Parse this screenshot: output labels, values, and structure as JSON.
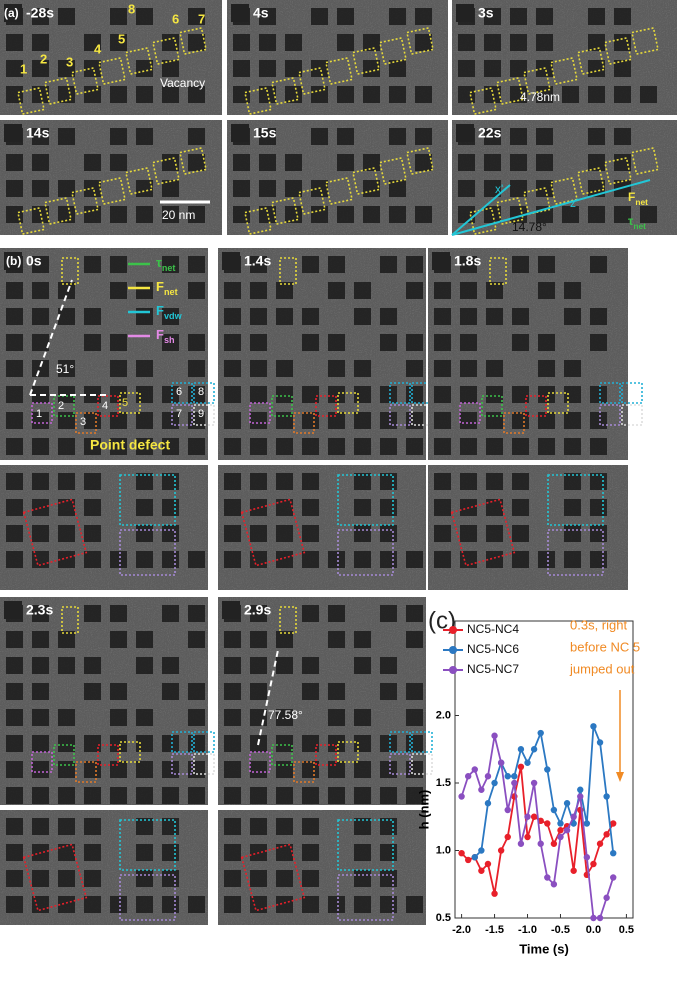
{
  "panel_a": {
    "label": "(a)",
    "frames": [
      {
        "time": "-28s"
      },
      {
        "time": "4s"
      },
      {
        "time": "3s"
      },
      {
        "time": "14s"
      },
      {
        "time": "15s"
      },
      {
        "time": "22s"
      }
    ],
    "nc_labels": [
      "1",
      "2",
      "3",
      "4",
      "5",
      "8",
      "6",
      "7"
    ],
    "vacancy": "Vacancy",
    "distance": "4.78nm",
    "scale_bar": "20 nm",
    "axis_x": "x'",
    "axis_z": "z'",
    "angle": "14.78°",
    "force": {
      "symbol": "F",
      "sub": "net",
      "color": "#f5e642"
    },
    "torque": {
      "symbol": "τ",
      "sub": "net",
      "color": "#3cc24a"
    }
  },
  "panel_b": {
    "label": "(b)",
    "frames": [
      {
        "time": "0s"
      },
      {
        "time": "1.4s"
      },
      {
        "time": "1.8s"
      },
      {
        "time": "2.3s"
      },
      {
        "time": "2.9s"
      }
    ],
    "legend": [
      {
        "symbol": "τ",
        "sub": "net",
        "color": "#3cc24a"
      },
      {
        "symbol": "F",
        "sub": "net",
        "color": "#f5e642"
      },
      {
        "symbol": "F",
        "sub": "vdw",
        "color": "#22c6d6"
      },
      {
        "symbol": "F",
        "sub": "sh",
        "color": "#e38ae6"
      }
    ],
    "angle_1": "51°",
    "nc_labels": [
      "1",
      "2",
      "3",
      "4",
      "5",
      "6",
      "7",
      "8",
      "9"
    ],
    "point_defect": "Point defect",
    "angle_2": "77.58°"
  },
  "chart_data": {
    "type": "line",
    "panel_label": "(c)",
    "xlabel": "Time (s)",
    "ylabel": "h (nm)",
    "annotation": [
      "0.3s, right",
      "before NC 5",
      "jumped out"
    ],
    "annotation_color": "#f08a24",
    "x": [
      -2.0,
      -1.9,
      -1.8,
      -1.7,
      -1.6,
      -1.5,
      -1.4,
      -1.3,
      -1.2,
      -1.1,
      -1.0,
      -0.9,
      -0.8,
      -0.7,
      -0.6,
      -0.5,
      -0.4,
      -0.3,
      -0.2,
      -0.1,
      0.0,
      0.1,
      0.2,
      0.3
    ],
    "series": [
      {
        "name": "NC5-NC4",
        "color": "#e8202a",
        "values": [
          0.98,
          0.93,
          0.95,
          0.85,
          0.9,
          0.68,
          1.0,
          1.1,
          1.4,
          1.62,
          1.1,
          1.25,
          1.22,
          1.2,
          1.05,
          1.15,
          1.18,
          0.85,
          1.3,
          0.82,
          0.9,
          1.05,
          1.12,
          1.2
        ]
      },
      {
        "name": "NC5-NC6",
        "color": "#2b78c2",
        "values": [
          null,
          null,
          0.95,
          1.0,
          1.35,
          1.5,
          1.65,
          1.55,
          1.55,
          1.75,
          1.65,
          1.75,
          1.87,
          1.6,
          1.3,
          1.2,
          1.35,
          1.2,
          1.45,
          1.2,
          1.92,
          1.8,
          1.4,
          0.98
        ]
      },
      {
        "name": "NC5-NC7",
        "color": "#8a4fc0",
        "values": [
          1.4,
          1.55,
          1.6,
          1.45,
          1.55,
          1.85,
          1.65,
          1.3,
          1.5,
          1.05,
          1.25,
          1.5,
          1.05,
          0.8,
          0.75,
          1.1,
          1.15,
          1.25,
          1.4,
          0.95,
          0.5,
          0.5,
          0.65,
          0.8
        ]
      }
    ],
    "xlim": [
      -2.1,
      0.6
    ],
    "ylim": [
      0.5,
      2.7
    ],
    "xticks": [
      {
        "value": -2,
        "label": "-2.0"
      },
      -1.5,
      {
        "value": -1,
        "label": "-1.0"
      },
      -0.5,
      {
        "value": 0,
        "label": "0.0"
      },
      0.5
    ],
    "yticks": [
      0.5,
      {
        "value": 1,
        "label": "1.0"
      },
      1.5,
      {
        "value": 2,
        "label": "2.0"
      }
    ]
  }
}
